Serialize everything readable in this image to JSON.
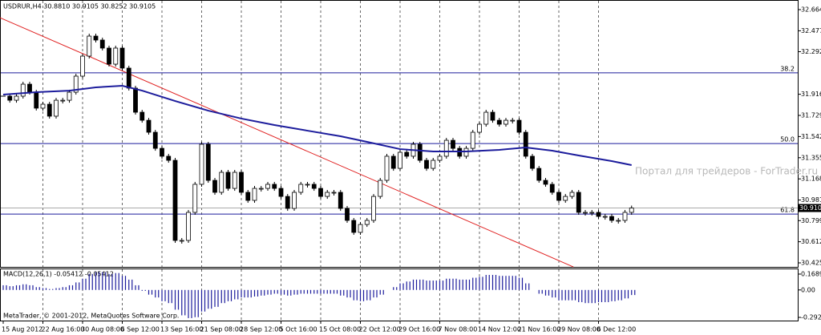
{
  "chart_data": {
    "type": "candlestick",
    "title": "USDRUR,H4 30.8810 30.9105 30.8252 30.9105",
    "categories": [
      "15 Aug 2012",
      null,
      null,
      null,
      null,
      null,
      "22 Aug 16:00",
      null,
      null,
      null,
      null,
      null,
      "30 Aug 08:00",
      null,
      null,
      null,
      null,
      null,
      "6 Sep 12:00",
      null,
      null,
      null,
      null,
      null,
      "13 Sep 16:00",
      null,
      null,
      null,
      null,
      null,
      "21 Sep 08:00",
      null,
      null,
      null,
      null,
      null,
      "28 Sep 12:00",
      null,
      null,
      null,
      null,
      null,
      "5 Oct 16:00",
      null,
      null,
      null,
      null,
      null,
      "15 Oct 08:00",
      null,
      null,
      null,
      null,
      null,
      "22 Oct 12:00",
      null,
      null,
      null,
      null,
      null,
      "29 Oct 16:00",
      null,
      null,
      null,
      null,
      null,
      "7 Nov 08:00",
      null,
      null,
      null,
      null,
      null,
      "14 Nov 12:00",
      null,
      null,
      null,
      null,
      null,
      "21 Nov 16:00",
      null,
      null,
      null,
      null,
      null,
      "29 Nov 08:00",
      null,
      null,
      null,
      null,
      null,
      "6 Dec 12:00",
      null,
      null,
      null,
      null,
      null
    ],
    "close": [
      31.899,
      31.863,
      31.899,
      32.005,
      31.934,
      31.793,
      31.828,
      31.722,
      31.863,
      31.863,
      31.934,
      32.076,
      32.253,
      32.43,
      32.395,
      32.324,
      32.182,
      32.324,
      32.147,
      31.97,
      31.757,
      31.686,
      31.58,
      31.438,
      31.368,
      31.332,
      30.624,
      30.624,
      30.872,
      31.12,
      31.474,
      31.155,
      31.049,
      31.226,
      31.084,
      31.226,
      31.049,
      30.978,
      31.084,
      31.084,
      31.12,
      31.084,
      31.013,
      30.907,
      31.049,
      31.12,
      31.12,
      31.084,
      31.013,
      31.049,
      31.049,
      30.907,
      30.801,
      30.695,
      30.765,
      30.801,
      31.013,
      31.155,
      31.368,
      31.261,
      31.403,
      31.368,
      31.474,
      31.332,
      31.261,
      31.332,
      31.368,
      31.509,
      31.438,
      31.368,
      31.438,
      31.58,
      31.651,
      31.757,
      31.686,
      31.651,
      31.686,
      31.686,
      31.58,
      31.368,
      31.261,
      31.155,
      31.12,
      31.049,
      30.978,
      31.013,
      31.049,
      30.872,
      30.872,
      30.872,
      30.836,
      30.836,
      30.801,
      30.801,
      30.872,
      30.9105
    ],
    "color": "#000000",
    "ma": {
      "color": "#1c1c9c",
      "x": [
        0,
        5,
        10,
        14,
        18,
        21,
        26,
        31,
        36,
        41,
        46,
        51,
        55,
        60,
        65,
        70,
        75,
        79,
        83,
        87,
        92,
        95
      ],
      "values": [
        31.913,
        31.934,
        31.948,
        31.977,
        31.991,
        31.948,
        31.856,
        31.771,
        31.701,
        31.644,
        31.594,
        31.545,
        31.495,
        31.431,
        31.41,
        31.41,
        31.424,
        31.446,
        31.417,
        31.375,
        31.325,
        31.29
      ]
    },
    "trendline": {
      "color": "#e02020",
      "x": [
        -0.5,
        86.2
      ],
      "values": [
        32.593,
        30.39
      ]
    },
    "levels": [
      {
        "name": "38.2",
        "value": 32.105
      },
      {
        "name": "50.0",
        "value": 31.48
      },
      {
        "name": "61.8",
        "value": 30.857
      }
    ],
    "last_price": 30.9105,
    "ylim": [
      30.376,
      32.749
    ],
    "yticks": [
      {
        "value": 32.664,
        "label": "32.6640"
      },
      {
        "value": 32.477,
        "label": "32.4770"
      },
      {
        "value": 32.292,
        "label": "32.2920"
      },
      {
        "value": 31.916,
        "label": "31.9160"
      },
      {
        "value": 31.729,
        "label": "31.7290"
      },
      {
        "value": 31.542,
        "label": "31.5420"
      },
      {
        "value": 31.355,
        "label": "31.3550"
      },
      {
        "value": 31.168,
        "label": "31.1680"
      },
      {
        "value": 30.981,
        "label": "30.9810"
      },
      {
        "value": 30.799,
        "label": "30.7990"
      },
      30.6125,
      30.4255
    ],
    "grid": true,
    "macd": {
      "title": "MACD(12,26,1) -0.05412 -0.05412",
      "color": "#1c1c9c",
      "ylim": [
        -0.326,
        0.237
      ],
      "yticks": [
        0.16891,
        {
          "value": 0,
          "label": "0.00"
        },
        -0.29208
      ],
      "values": [
        0.05,
        0.04,
        0.05,
        0.06,
        0.05,
        0.03,
        0.02,
        0.01,
        0.02,
        0.03,
        0.05,
        0.08,
        0.12,
        0.17,
        0.19,
        0.19,
        0.17,
        0.18,
        0.15,
        0.11,
        0.05,
        -0.01,
        -0.05,
        -0.08,
        -0.12,
        -0.14,
        -0.21,
        -0.27,
        -0.3,
        -0.29,
        -0.23,
        -0.2,
        -0.18,
        -0.14,
        -0.12,
        -0.1,
        -0.08,
        -0.08,
        -0.07,
        -0.06,
        -0.05,
        -0.04,
        -0.05,
        -0.06,
        -0.05,
        -0.04,
        -0.04,
        -0.04,
        -0.04,
        -0.04,
        -0.04,
        -0.06,
        -0.08,
        -0.11,
        -0.12,
        -0.11,
        -0.08,
        -0.05,
        0.0,
        0.03,
        0.07,
        0.09,
        0.11,
        0.11,
        0.1,
        0.1,
        0.1,
        0.12,
        0.12,
        0.11,
        0.11,
        0.13,
        0.14,
        0.16,
        0.16,
        0.15,
        0.15,
        0.15,
        0.13,
        0.07,
        0.0,
        -0.04,
        -0.06,
        -0.08,
        -0.11,
        -0.11,
        -0.11,
        -0.13,
        -0.14,
        -0.14,
        -0.13,
        -0.13,
        -0.12,
        -0.11,
        -0.09,
        -0.05412
      ]
    },
    "watermark": "Портал для трейдеров - ForTrader.ru",
    "footer": "MetaTrader, © 2001-2012, MetaQuotes Software Corp."
  }
}
